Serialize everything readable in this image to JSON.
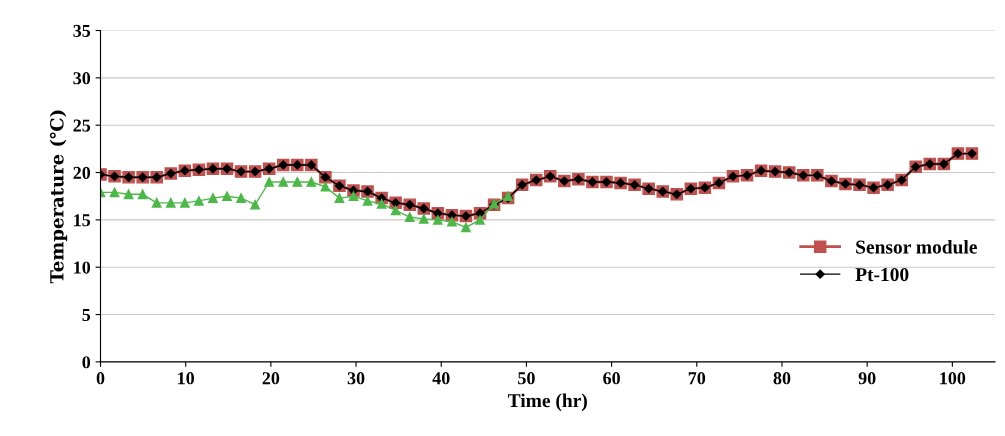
{
  "chart_data": {
    "type": "line",
    "xlabel": "Time (hr)",
    "ylabel": "Temperature (℃)",
    "x": [
      0,
      1.65,
      3.3,
      4.95,
      6.6,
      8.25,
      9.9,
      11.55,
      13.2,
      14.85,
      16.5,
      18.15,
      19.8,
      21.45,
      23.1,
      24.75,
      26.4,
      28.05,
      29.7,
      31.35,
      33,
      34.65,
      36.3,
      37.95,
      39.6,
      41.25,
      42.9,
      44.55,
      46.2,
      47.85,
      49.5,
      51.15,
      52.8,
      54.45,
      56.1,
      57.75,
      59.4,
      61.05,
      62.7,
      64.35,
      66,
      67.65,
      69.3,
      70.95,
      72.6,
      74.25,
      75.9,
      77.55,
      79.2,
      80.85,
      82.5,
      84.15,
      85.8,
      87.45,
      89.1,
      90.75,
      92.4,
      94.05,
      95.7,
      97.35,
      99,
      100.65,
      102.3
    ],
    "series": [
      {
        "name": "Sensor module",
        "color": "#c0504d",
        "marker": "square",
        "values": [
          19.8,
          19.6,
          19.5,
          19.5,
          19.5,
          19.9,
          20.2,
          20.3,
          20.4,
          20.4,
          20.1,
          20.1,
          20.4,
          20.8,
          20.8,
          20.8,
          19.5,
          18.6,
          18.1,
          18.0,
          17.3,
          16.8,
          16.6,
          16.2,
          15.7,
          15.5,
          15.4,
          15.7,
          16.6,
          17.3,
          18.7,
          19.2,
          19.6,
          19.1,
          19.3,
          19.0,
          19.0,
          18.9,
          18.7,
          18.3,
          18.0,
          17.7,
          18.3,
          18.4,
          18.9,
          19.6,
          19.7,
          20.2,
          20.1,
          20.0,
          19.7,
          19.7,
          19.1,
          18.8,
          18.7,
          18.4,
          18.7,
          19.2,
          20.6,
          20.9,
          20.9,
          22.0,
          22.0
        ]
      },
      {
        "name": "Pt-100",
        "color": "#000000",
        "marker": "diamond",
        "values": [
          19.8,
          19.6,
          19.5,
          19.5,
          19.5,
          19.9,
          20.2,
          20.3,
          20.4,
          20.4,
          20.1,
          20.1,
          20.4,
          20.8,
          20.8,
          20.8,
          19.5,
          18.6,
          18.1,
          18.0,
          17.3,
          16.8,
          16.6,
          16.2,
          15.7,
          15.5,
          15.4,
          15.7,
          16.6,
          17.3,
          18.7,
          19.2,
          19.6,
          19.1,
          19.3,
          19.0,
          19.0,
          18.9,
          18.7,
          18.3,
          18.0,
          17.7,
          18.3,
          18.4,
          18.9,
          19.6,
          19.7,
          20.2,
          20.1,
          20.0,
          19.7,
          19.7,
          19.1,
          18.8,
          18.7,
          18.4,
          18.7,
          19.2,
          20.6,
          20.9,
          20.9,
          22.0,
          22.0
        ]
      },
      {
        "color": "#4cb848",
        "marker": "triangle",
        "values": [
          17.9,
          17.9,
          17.7,
          17.7,
          16.8,
          16.8,
          16.8,
          17.0,
          17.3,
          17.5,
          17.3,
          16.6,
          19.0,
          19.0,
          19.0,
          19.0,
          18.5,
          17.3,
          17.5,
          17.0,
          16.7,
          16.0,
          15.3,
          15.1,
          15.0,
          14.8,
          14.2,
          15.0,
          16.7,
          17.5,
          null,
          null,
          null,
          null,
          null,
          null,
          null,
          null,
          null,
          null,
          null,
          null,
          null,
          null,
          null,
          null,
          null,
          null,
          null,
          null,
          null,
          null,
          null,
          null,
          null,
          null,
          null,
          null,
          null,
          null,
          null,
          null,
          null
        ]
      }
    ],
    "xlim": [
      0,
      105
    ],
    "xticks": [
      0,
      10,
      20,
      30,
      40,
      50,
      60,
      70,
      80,
      90,
      100
    ],
    "ylim": [
      0,
      35
    ],
    "yticks": [
      0,
      5,
      10,
      15,
      20,
      25,
      30,
      35
    ],
    "grid": "y",
    "legend": "right"
  }
}
